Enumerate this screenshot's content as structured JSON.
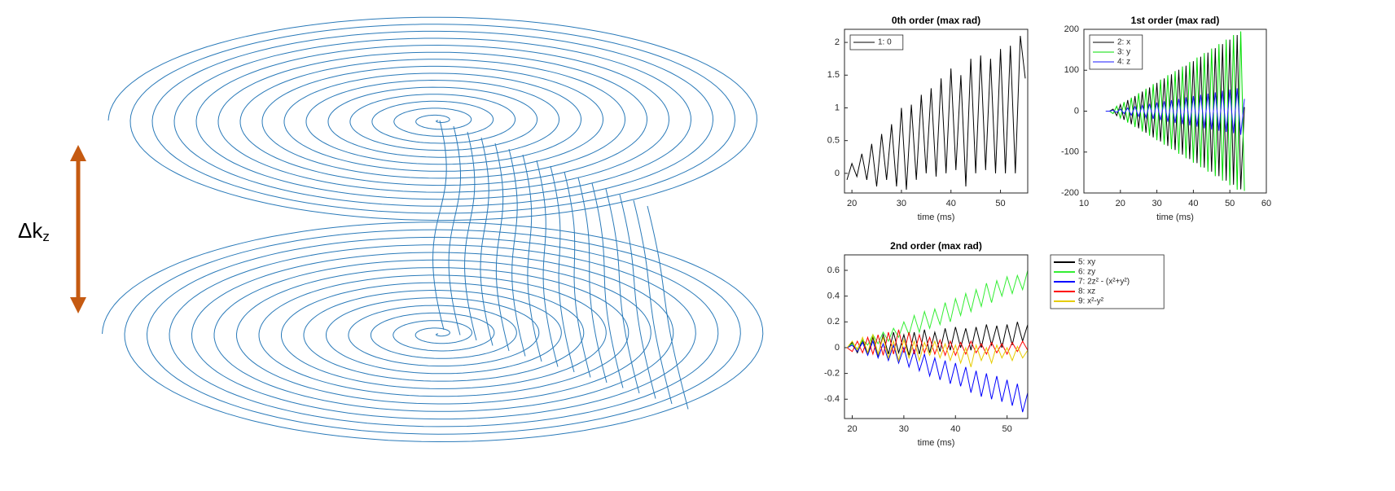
{
  "diagram": {
    "label": "Δk",
    "label_subscript": "z"
  },
  "chart_data": [
    {
      "type": "line",
      "title": "0th order (max rad)",
      "xlabel": "time (ms)",
      "legend": "northwest",
      "xlim": [
        18.5,
        55.5
      ],
      "ylim": [
        -0.3,
        2.2
      ],
      "xticks": [
        20,
        30,
        40,
        50
      ],
      "yticks": [
        0,
        0.5,
        1,
        1.5,
        2
      ],
      "x": [
        19,
        20,
        21,
        22,
        23,
        24,
        25,
        26,
        27,
        28,
        29,
        30,
        31,
        32,
        33,
        34,
        35,
        36,
        37,
        38,
        39,
        40,
        41,
        42,
        43,
        44,
        45,
        46,
        47,
        48,
        49,
        50,
        51,
        52,
        53,
        54,
        55
      ],
      "series": [
        {
          "name": "1: 0",
          "color": "#000000",
          "values": [
            -0.1,
            0.15,
            -0.05,
            0.3,
            -0.1,
            0.45,
            -0.2,
            0.6,
            -0.1,
            0.75,
            -0.2,
            1.0,
            -0.25,
            1.05,
            -0.1,
            1.2,
            0.0,
            1.3,
            -0.05,
            1.45,
            0.0,
            1.6,
            0.05,
            1.5,
            -0.2,
            1.75,
            0.0,
            1.8,
            0.05,
            1.75,
            0.0,
            1.9,
            0.0,
            1.95,
            0.0,
            2.1,
            1.45
          ]
        }
      ]
    },
    {
      "type": "line",
      "title": "1st order (max rad)",
      "xlabel": "time (ms)",
      "legend": "northwest",
      "xlim": [
        10,
        60
      ],
      "ylim": [
        -200,
        200
      ],
      "xticks": [
        10,
        20,
        30,
        40,
        50,
        60
      ],
      "yticks": [
        -200,
        -100,
        0,
        100,
        200
      ],
      "x": [
        16,
        17,
        18,
        19,
        20,
        21,
        22,
        23,
        24,
        25,
        26,
        27,
        28,
        29,
        30,
        31,
        32,
        33,
        34,
        35,
        36,
        37,
        38,
        39,
        40,
        41,
        42,
        43,
        44,
        45,
        46,
        47,
        48,
        49,
        50,
        51,
        52,
        53,
        54
      ],
      "series": [
        {
          "name": "2: x",
          "color": "#000000",
          "values": [
            0,
            0,
            5,
            -11,
            16,
            -21,
            27,
            -32,
            37,
            -42,
            48,
            -53,
            58,
            -64,
            69,
            -74,
            80,
            -85,
            90,
            -95,
            101,
            -106,
            111,
            -117,
            122,
            -127,
            133,
            -138,
            143,
            -148,
            154,
            -159,
            164,
            -170,
            175,
            -180,
            186,
            -191,
            10
          ]
        },
        {
          "name": "3: y",
          "color": "#00dd00",
          "values": [
            0,
            0,
            -6,
            12,
            -17,
            22,
            -28,
            33,
            -39,
            44,
            -50,
            55,
            -60,
            66,
            -71,
            77,
            -82,
            88,
            -93,
            98,
            -104,
            109,
            -115,
            120,
            -126,
            131,
            -137,
            142,
            -148,
            153,
            -159,
            164,
            -170,
            175,
            -181,
            186,
            -192,
            195,
            -195
          ]
        },
        {
          "name": "4: z",
          "color": "#1a1aff",
          "values": [
            0,
            0,
            2,
            -3,
            5,
            -6,
            8,
            -10,
            11,
            -13,
            14,
            -16,
            18,
            -19,
            21,
            -22,
            24,
            -26,
            27,
            -29,
            30,
            -32,
            34,
            -35,
            37,
            -38,
            40,
            -42,
            43,
            -45,
            46,
            -48,
            50,
            -51,
            53,
            -54,
            56,
            -58,
            30
          ]
        }
      ]
    },
    {
      "type": "line",
      "title": "2nd order (max rad)",
      "xlabel": "time (ms)",
      "legend": "outside-east",
      "xlim": [
        18.5,
        54
      ],
      "ylim": [
        -0.55,
        0.72
      ],
      "xticks": [
        20,
        30,
        40,
        50
      ],
      "yticks": [
        -0.4,
        -0.2,
        0,
        0.2,
        0.4,
        0.6
      ],
      "x": [
        19,
        20,
        21,
        22,
        23,
        24,
        25,
        26,
        27,
        28,
        29,
        30,
        31,
        32,
        33,
        34,
        35,
        36,
        37,
        38,
        39,
        40,
        41,
        42,
        43,
        44,
        45,
        46,
        47,
        48,
        49,
        50,
        51,
        52,
        53,
        54
      ],
      "series": [
        {
          "name": "5: xy",
          "color": "#000000",
          "values": [
            0,
            0.04,
            -0.04,
            0.06,
            -0.05,
            0.08,
            -0.06,
            0.1,
            -0.05,
            0.12,
            -0.04,
            0.1,
            -0.06,
            0.12,
            -0.05,
            0.14,
            -0.04,
            0.12,
            -0.03,
            0.15,
            -0.02,
            0.16,
            0.0,
            0.15,
            -0.02,
            0.16,
            0.0,
            0.18,
            0.02,
            0.17,
            0.0,
            0.18,
            0.02,
            0.2,
            0.05,
            0.18
          ]
        },
        {
          "name": "6: zy",
          "color": "#33ee33",
          "values": [
            0,
            0.03,
            -0.01,
            0.06,
            0.02,
            0.1,
            0.03,
            0.12,
            0.05,
            0.15,
            0.08,
            0.2,
            0.1,
            0.25,
            0.12,
            0.28,
            0.15,
            0.3,
            0.18,
            0.35,
            0.2,
            0.38,
            0.25,
            0.42,
            0.28,
            0.45,
            0.32,
            0.5,
            0.35,
            0.52,
            0.4,
            0.55,
            0.42,
            0.56,
            0.45,
            0.6
          ]
        },
        {
          "name": "7: 2z² - (x²+y²)",
          "color": "#0000ff",
          "values": [
            0,
            0.02,
            -0.03,
            0.04,
            -0.06,
            0.05,
            -0.08,
            0.03,
            -0.1,
            0.02,
            -0.12,
            0.0,
            -0.15,
            -0.02,
            -0.18,
            -0.05,
            -0.22,
            -0.08,
            -0.25,
            -0.1,
            -0.28,
            -0.12,
            -0.3,
            -0.15,
            -0.35,
            -0.18,
            -0.38,
            -0.2,
            -0.4,
            -0.22,
            -0.42,
            -0.25,
            -0.45,
            -0.28,
            -0.5,
            -0.35
          ]
        },
        {
          "name": "8: xz",
          "color": "#ff0000",
          "values": [
            0,
            -0.03,
            0.05,
            -0.04,
            0.08,
            -0.05,
            0.1,
            -0.06,
            0.12,
            -0.05,
            0.14,
            -0.04,
            0.12,
            -0.05,
            0.1,
            -0.04,
            0.08,
            -0.05,
            0.06,
            -0.06,
            0.05,
            -0.06,
            0.04,
            -0.05,
            0.05,
            -0.04,
            0.03,
            -0.05,
            0.04,
            -0.04,
            0.03,
            -0.05,
            0.04,
            -0.03,
            0.05,
            -0.02
          ]
        },
        {
          "name": "9: x²-y²",
          "color": "#e6cc00",
          "values": [
            0,
            0.05,
            -0.02,
            0.08,
            -0.04,
            0.1,
            -0.05,
            0.08,
            -0.08,
            0.05,
            -0.1,
            0.06,
            -0.08,
            0.05,
            -0.1,
            0.04,
            -0.06,
            0.05,
            -0.08,
            0.03,
            -0.1,
            0.02,
            -0.12,
            0.0,
            -0.15,
            0.02,
            -0.1,
            0.0,
            -0.12,
            0.02,
            -0.08,
            0.0,
            -0.1,
            0.01,
            -0.08,
            -0.02
          ]
        }
      ]
    }
  ]
}
